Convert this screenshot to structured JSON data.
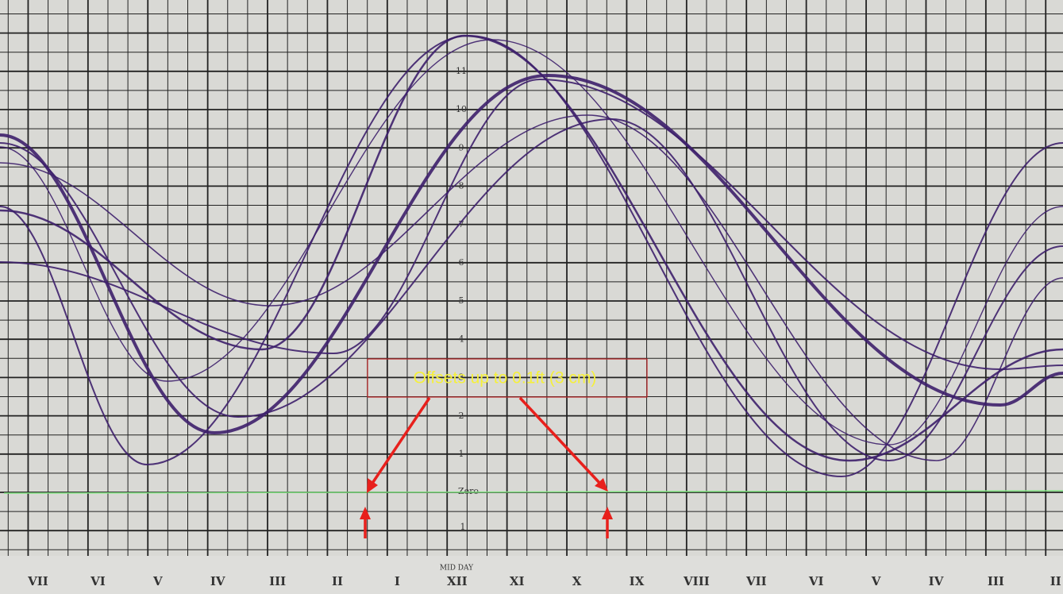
{
  "hour_labels": [
    "VII",
    "VI",
    "V",
    "IV",
    "III",
    "II",
    "I",
    "XII",
    "XI",
    "X",
    "IX",
    "VIII",
    "VII",
    "VI",
    "V",
    "IV",
    "III",
    "II"
  ],
  "scale_labels": [
    "11",
    "10",
    "9",
    "8",
    "7",
    "6",
    "5",
    "4",
    "3",
    "2",
    "1"
  ],
  "zero_label": "Zero",
  "below_zero_label": "1",
  "midday_label": "MID DAY",
  "annotation": "Offsets up to 0.1ft (3 cm)"
}
